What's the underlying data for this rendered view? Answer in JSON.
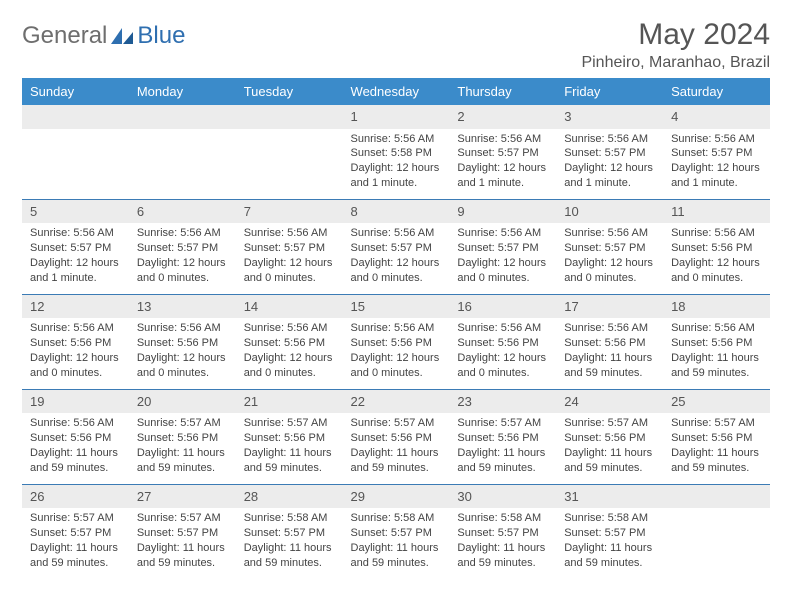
{
  "brand": {
    "part1": "General",
    "part2": "Blue"
  },
  "title": "May 2024",
  "location": "Pinheiro, Maranhao, Brazil",
  "colors": {
    "header_bg": "#3b8bca",
    "header_text": "#ffffff",
    "daynum_bg": "#ececec",
    "row_border": "#3b7bb5",
    "body_text": "#444444",
    "title_text": "#555555",
    "logo_gray": "#6e6e6e",
    "logo_blue": "#2f6fb0"
  },
  "day_labels": [
    "Sunday",
    "Monday",
    "Tuesday",
    "Wednesday",
    "Thursday",
    "Friday",
    "Saturday"
  ],
  "weeks": [
    [
      {
        "n": "",
        "sr": "",
        "ss": "",
        "dl": ""
      },
      {
        "n": "",
        "sr": "",
        "ss": "",
        "dl": ""
      },
      {
        "n": "",
        "sr": "",
        "ss": "",
        "dl": ""
      },
      {
        "n": "1",
        "sr": "Sunrise: 5:56 AM",
        "ss": "Sunset: 5:58 PM",
        "dl": "Daylight: 12 hours and 1 minute."
      },
      {
        "n": "2",
        "sr": "Sunrise: 5:56 AM",
        "ss": "Sunset: 5:57 PM",
        "dl": "Daylight: 12 hours and 1 minute."
      },
      {
        "n": "3",
        "sr": "Sunrise: 5:56 AM",
        "ss": "Sunset: 5:57 PM",
        "dl": "Daylight: 12 hours and 1 minute."
      },
      {
        "n": "4",
        "sr": "Sunrise: 5:56 AM",
        "ss": "Sunset: 5:57 PM",
        "dl": "Daylight: 12 hours and 1 minute."
      }
    ],
    [
      {
        "n": "5",
        "sr": "Sunrise: 5:56 AM",
        "ss": "Sunset: 5:57 PM",
        "dl": "Daylight: 12 hours and 1 minute."
      },
      {
        "n": "6",
        "sr": "Sunrise: 5:56 AM",
        "ss": "Sunset: 5:57 PM",
        "dl": "Daylight: 12 hours and 0 minutes."
      },
      {
        "n": "7",
        "sr": "Sunrise: 5:56 AM",
        "ss": "Sunset: 5:57 PM",
        "dl": "Daylight: 12 hours and 0 minutes."
      },
      {
        "n": "8",
        "sr": "Sunrise: 5:56 AM",
        "ss": "Sunset: 5:57 PM",
        "dl": "Daylight: 12 hours and 0 minutes."
      },
      {
        "n": "9",
        "sr": "Sunrise: 5:56 AM",
        "ss": "Sunset: 5:57 PM",
        "dl": "Daylight: 12 hours and 0 minutes."
      },
      {
        "n": "10",
        "sr": "Sunrise: 5:56 AM",
        "ss": "Sunset: 5:57 PM",
        "dl": "Daylight: 12 hours and 0 minutes."
      },
      {
        "n": "11",
        "sr": "Sunrise: 5:56 AM",
        "ss": "Sunset: 5:56 PM",
        "dl": "Daylight: 12 hours and 0 minutes."
      }
    ],
    [
      {
        "n": "12",
        "sr": "Sunrise: 5:56 AM",
        "ss": "Sunset: 5:56 PM",
        "dl": "Daylight: 12 hours and 0 minutes."
      },
      {
        "n": "13",
        "sr": "Sunrise: 5:56 AM",
        "ss": "Sunset: 5:56 PM",
        "dl": "Daylight: 12 hours and 0 minutes."
      },
      {
        "n": "14",
        "sr": "Sunrise: 5:56 AM",
        "ss": "Sunset: 5:56 PM",
        "dl": "Daylight: 12 hours and 0 minutes."
      },
      {
        "n": "15",
        "sr": "Sunrise: 5:56 AM",
        "ss": "Sunset: 5:56 PM",
        "dl": "Daylight: 12 hours and 0 minutes."
      },
      {
        "n": "16",
        "sr": "Sunrise: 5:56 AM",
        "ss": "Sunset: 5:56 PM",
        "dl": "Daylight: 12 hours and 0 minutes."
      },
      {
        "n": "17",
        "sr": "Sunrise: 5:56 AM",
        "ss": "Sunset: 5:56 PM",
        "dl": "Daylight: 11 hours and 59 minutes."
      },
      {
        "n": "18",
        "sr": "Sunrise: 5:56 AM",
        "ss": "Sunset: 5:56 PM",
        "dl": "Daylight: 11 hours and 59 minutes."
      }
    ],
    [
      {
        "n": "19",
        "sr": "Sunrise: 5:56 AM",
        "ss": "Sunset: 5:56 PM",
        "dl": "Daylight: 11 hours and 59 minutes."
      },
      {
        "n": "20",
        "sr": "Sunrise: 5:57 AM",
        "ss": "Sunset: 5:56 PM",
        "dl": "Daylight: 11 hours and 59 minutes."
      },
      {
        "n": "21",
        "sr": "Sunrise: 5:57 AM",
        "ss": "Sunset: 5:56 PM",
        "dl": "Daylight: 11 hours and 59 minutes."
      },
      {
        "n": "22",
        "sr": "Sunrise: 5:57 AM",
        "ss": "Sunset: 5:56 PM",
        "dl": "Daylight: 11 hours and 59 minutes."
      },
      {
        "n": "23",
        "sr": "Sunrise: 5:57 AM",
        "ss": "Sunset: 5:56 PM",
        "dl": "Daylight: 11 hours and 59 minutes."
      },
      {
        "n": "24",
        "sr": "Sunrise: 5:57 AM",
        "ss": "Sunset: 5:56 PM",
        "dl": "Daylight: 11 hours and 59 minutes."
      },
      {
        "n": "25",
        "sr": "Sunrise: 5:57 AM",
        "ss": "Sunset: 5:56 PM",
        "dl": "Daylight: 11 hours and 59 minutes."
      }
    ],
    [
      {
        "n": "26",
        "sr": "Sunrise: 5:57 AM",
        "ss": "Sunset: 5:57 PM",
        "dl": "Daylight: 11 hours and 59 minutes."
      },
      {
        "n": "27",
        "sr": "Sunrise: 5:57 AM",
        "ss": "Sunset: 5:57 PM",
        "dl": "Daylight: 11 hours and 59 minutes."
      },
      {
        "n": "28",
        "sr": "Sunrise: 5:58 AM",
        "ss": "Sunset: 5:57 PM",
        "dl": "Daylight: 11 hours and 59 minutes."
      },
      {
        "n": "29",
        "sr": "Sunrise: 5:58 AM",
        "ss": "Sunset: 5:57 PM",
        "dl": "Daylight: 11 hours and 59 minutes."
      },
      {
        "n": "30",
        "sr": "Sunrise: 5:58 AM",
        "ss": "Sunset: 5:57 PM",
        "dl": "Daylight: 11 hours and 59 minutes."
      },
      {
        "n": "31",
        "sr": "Sunrise: 5:58 AM",
        "ss": "Sunset: 5:57 PM",
        "dl": "Daylight: 11 hours and 59 minutes."
      },
      {
        "n": "",
        "sr": "",
        "ss": "",
        "dl": ""
      }
    ]
  ]
}
